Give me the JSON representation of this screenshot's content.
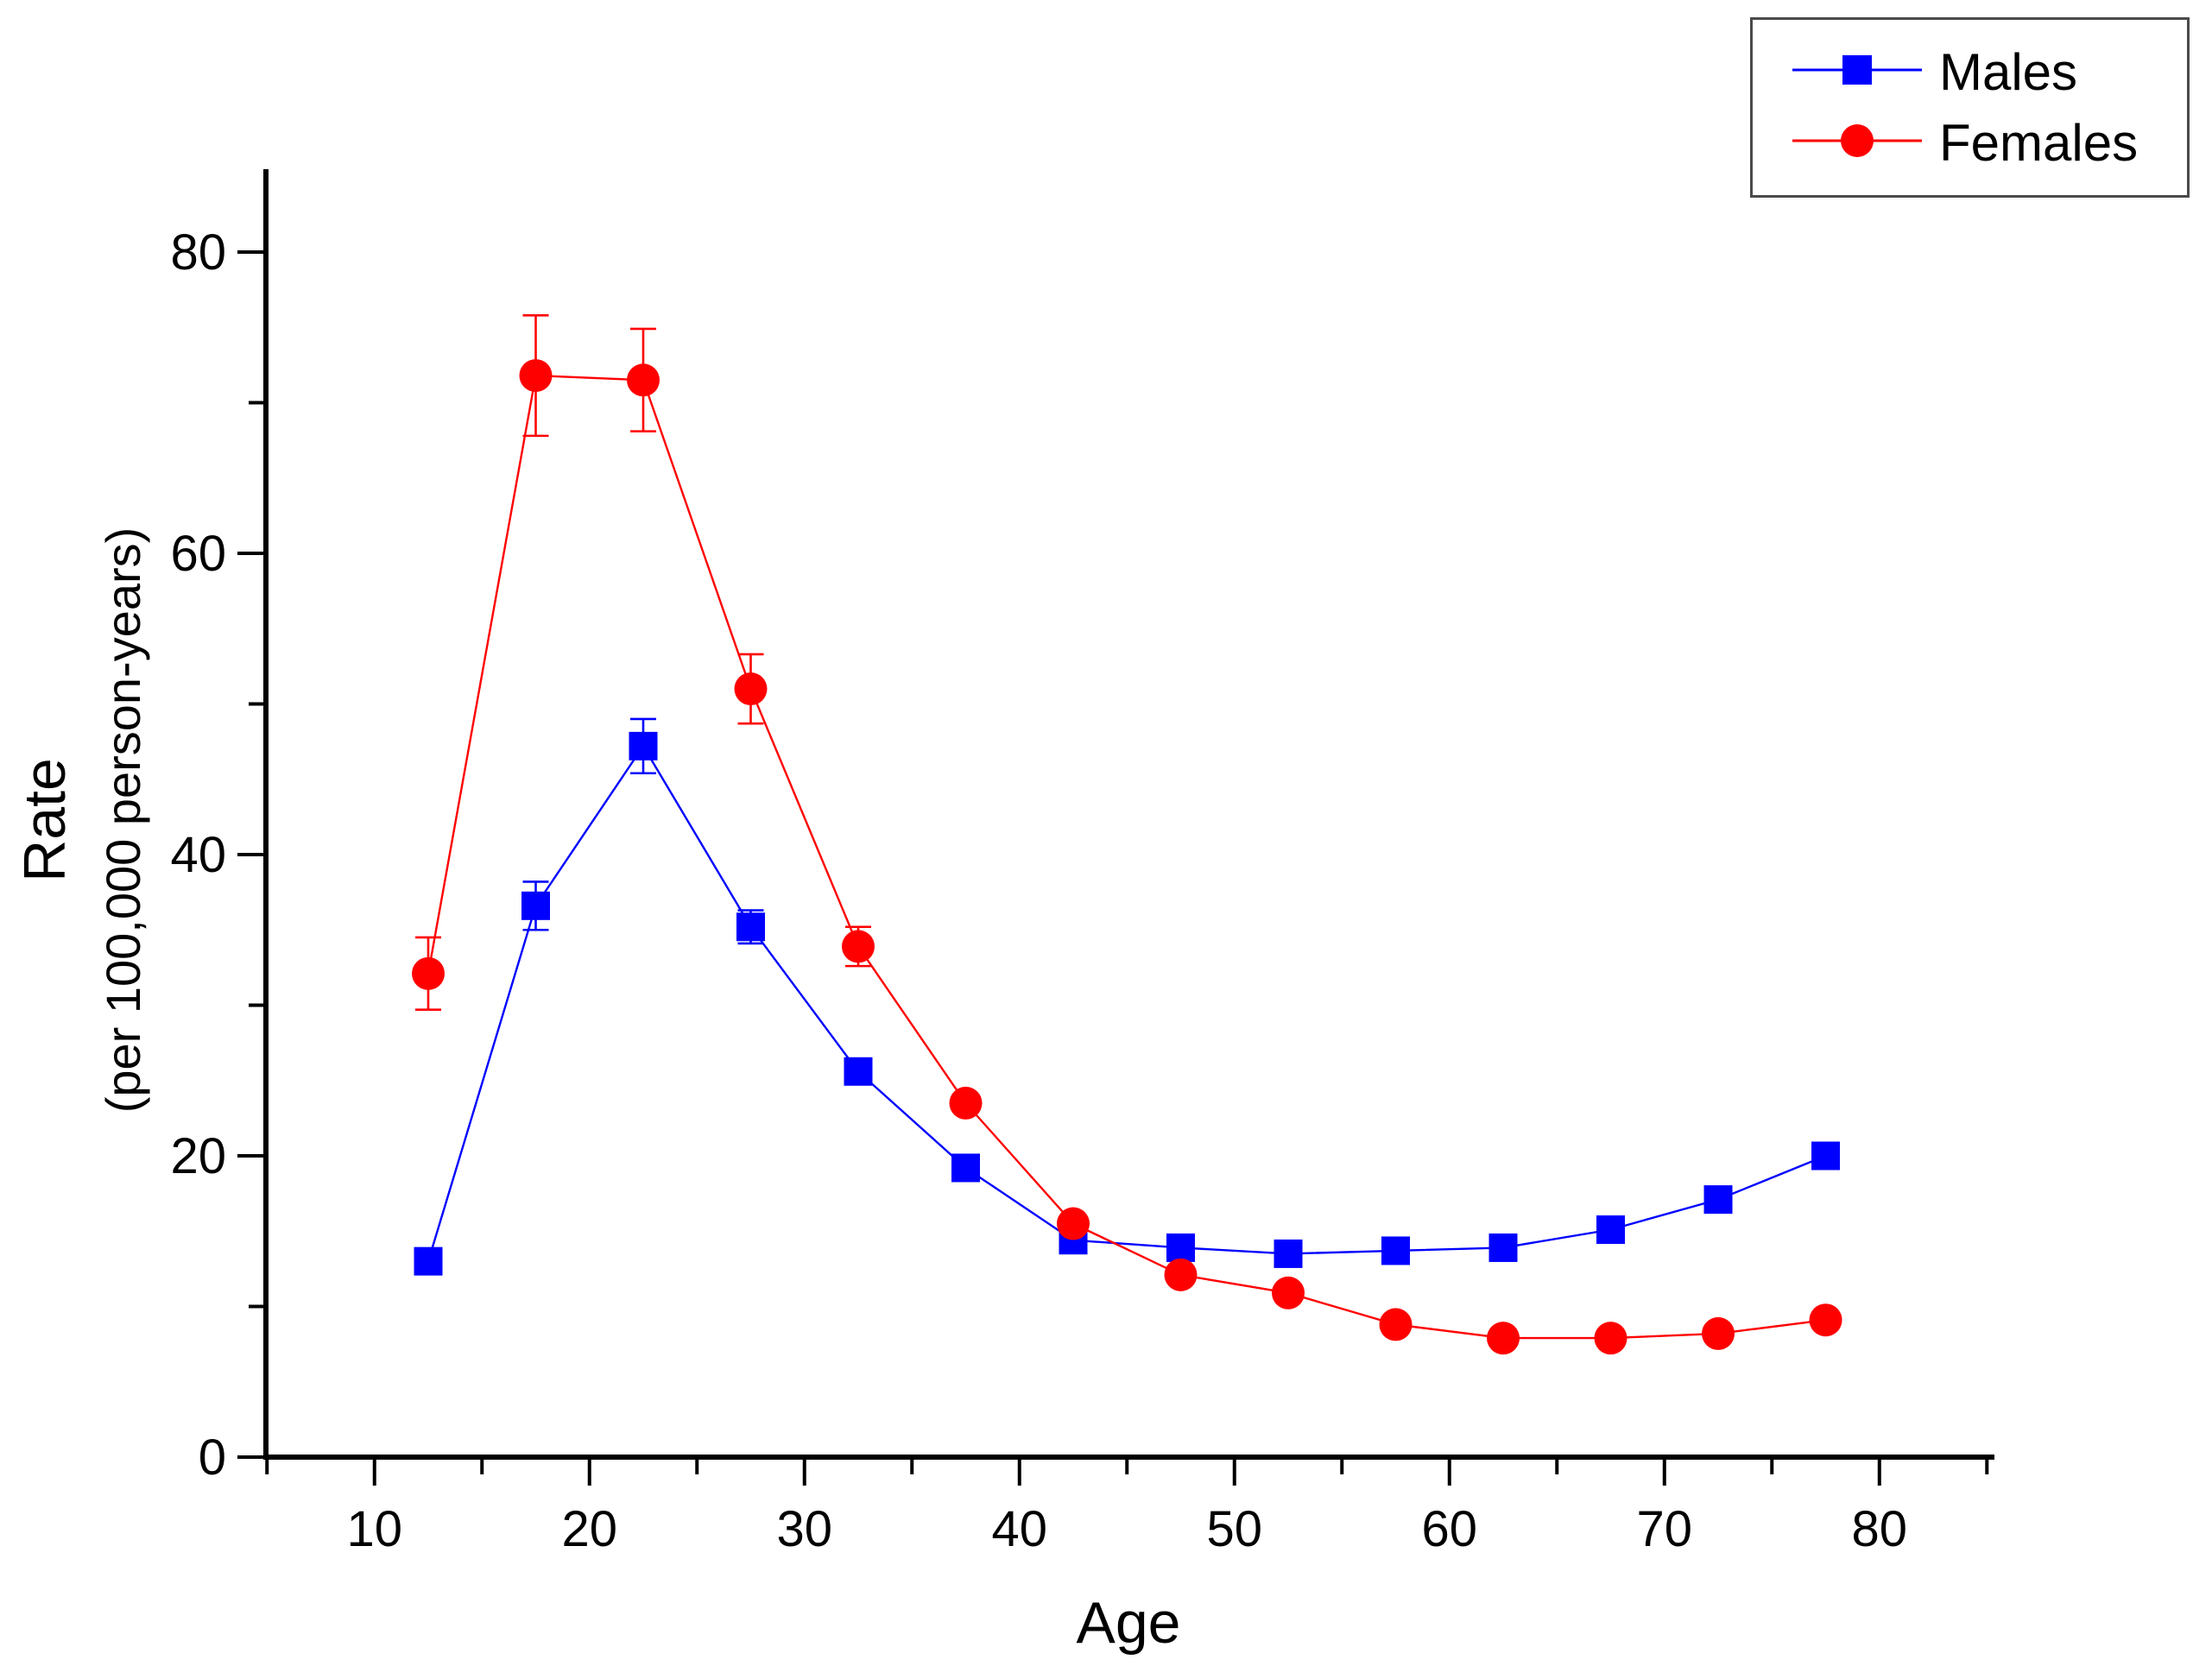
{
  "figure": {
    "background": "#ffffff",
    "axis_color": "#000000"
  },
  "chart_data": {
    "type": "line",
    "title": "",
    "xlabel": "Age",
    "ylabel": "Rate",
    "ylabel_sub": "(per 100,000 person-years)",
    "xlim": [
      4.95,
      85.35
    ],
    "ylim": [
      0,
      85.5
    ],
    "x_major_ticks": [
      10,
      20,
      30,
      40,
      50,
      60,
      70,
      80
    ],
    "x_minor_ticks": [
      5,
      15,
      25,
      35,
      45,
      55,
      65,
      75,
      85
    ],
    "y_major_ticks": [
      0,
      20,
      40,
      60,
      80
    ],
    "y_minor_ticks": [
      10,
      30,
      50,
      70
    ],
    "grid": false,
    "legend_position": "top-right",
    "x": [
      12.5,
      17.5,
      22.5,
      27.5,
      32.5,
      37.5,
      42.5,
      47.5,
      52.5,
      57.5,
      62.5,
      67.5,
      72.5,
      77.5
    ],
    "series": [
      {
        "name": "Males",
        "color": "#0000ff",
        "marker": "square",
        "values": [
          13.0,
          36.6,
          47.2,
          35.2,
          25.6,
          19.2,
          14.4,
          13.9,
          13.5,
          13.7,
          13.9,
          15.1,
          17.1,
          20.0
        ],
        "errors": [
          0,
          1.6,
          1.8,
          1.1,
          0,
          0,
          0,
          0,
          0,
          0,
          0,
          0,
          0,
          0
        ]
      },
      {
        "name": "Females",
        "color": "#ff0000",
        "marker": "circle",
        "values": [
          32.1,
          71.8,
          71.5,
          51.0,
          33.9,
          23.5,
          15.5,
          12.1,
          10.9,
          8.8,
          7.9,
          7.9,
          8.2,
          9.1
        ],
        "errors": [
          2.4,
          4.0,
          3.4,
          2.3,
          1.3,
          0,
          0,
          0,
          0,
          0,
          0,
          0,
          0,
          0
        ]
      }
    ]
  }
}
